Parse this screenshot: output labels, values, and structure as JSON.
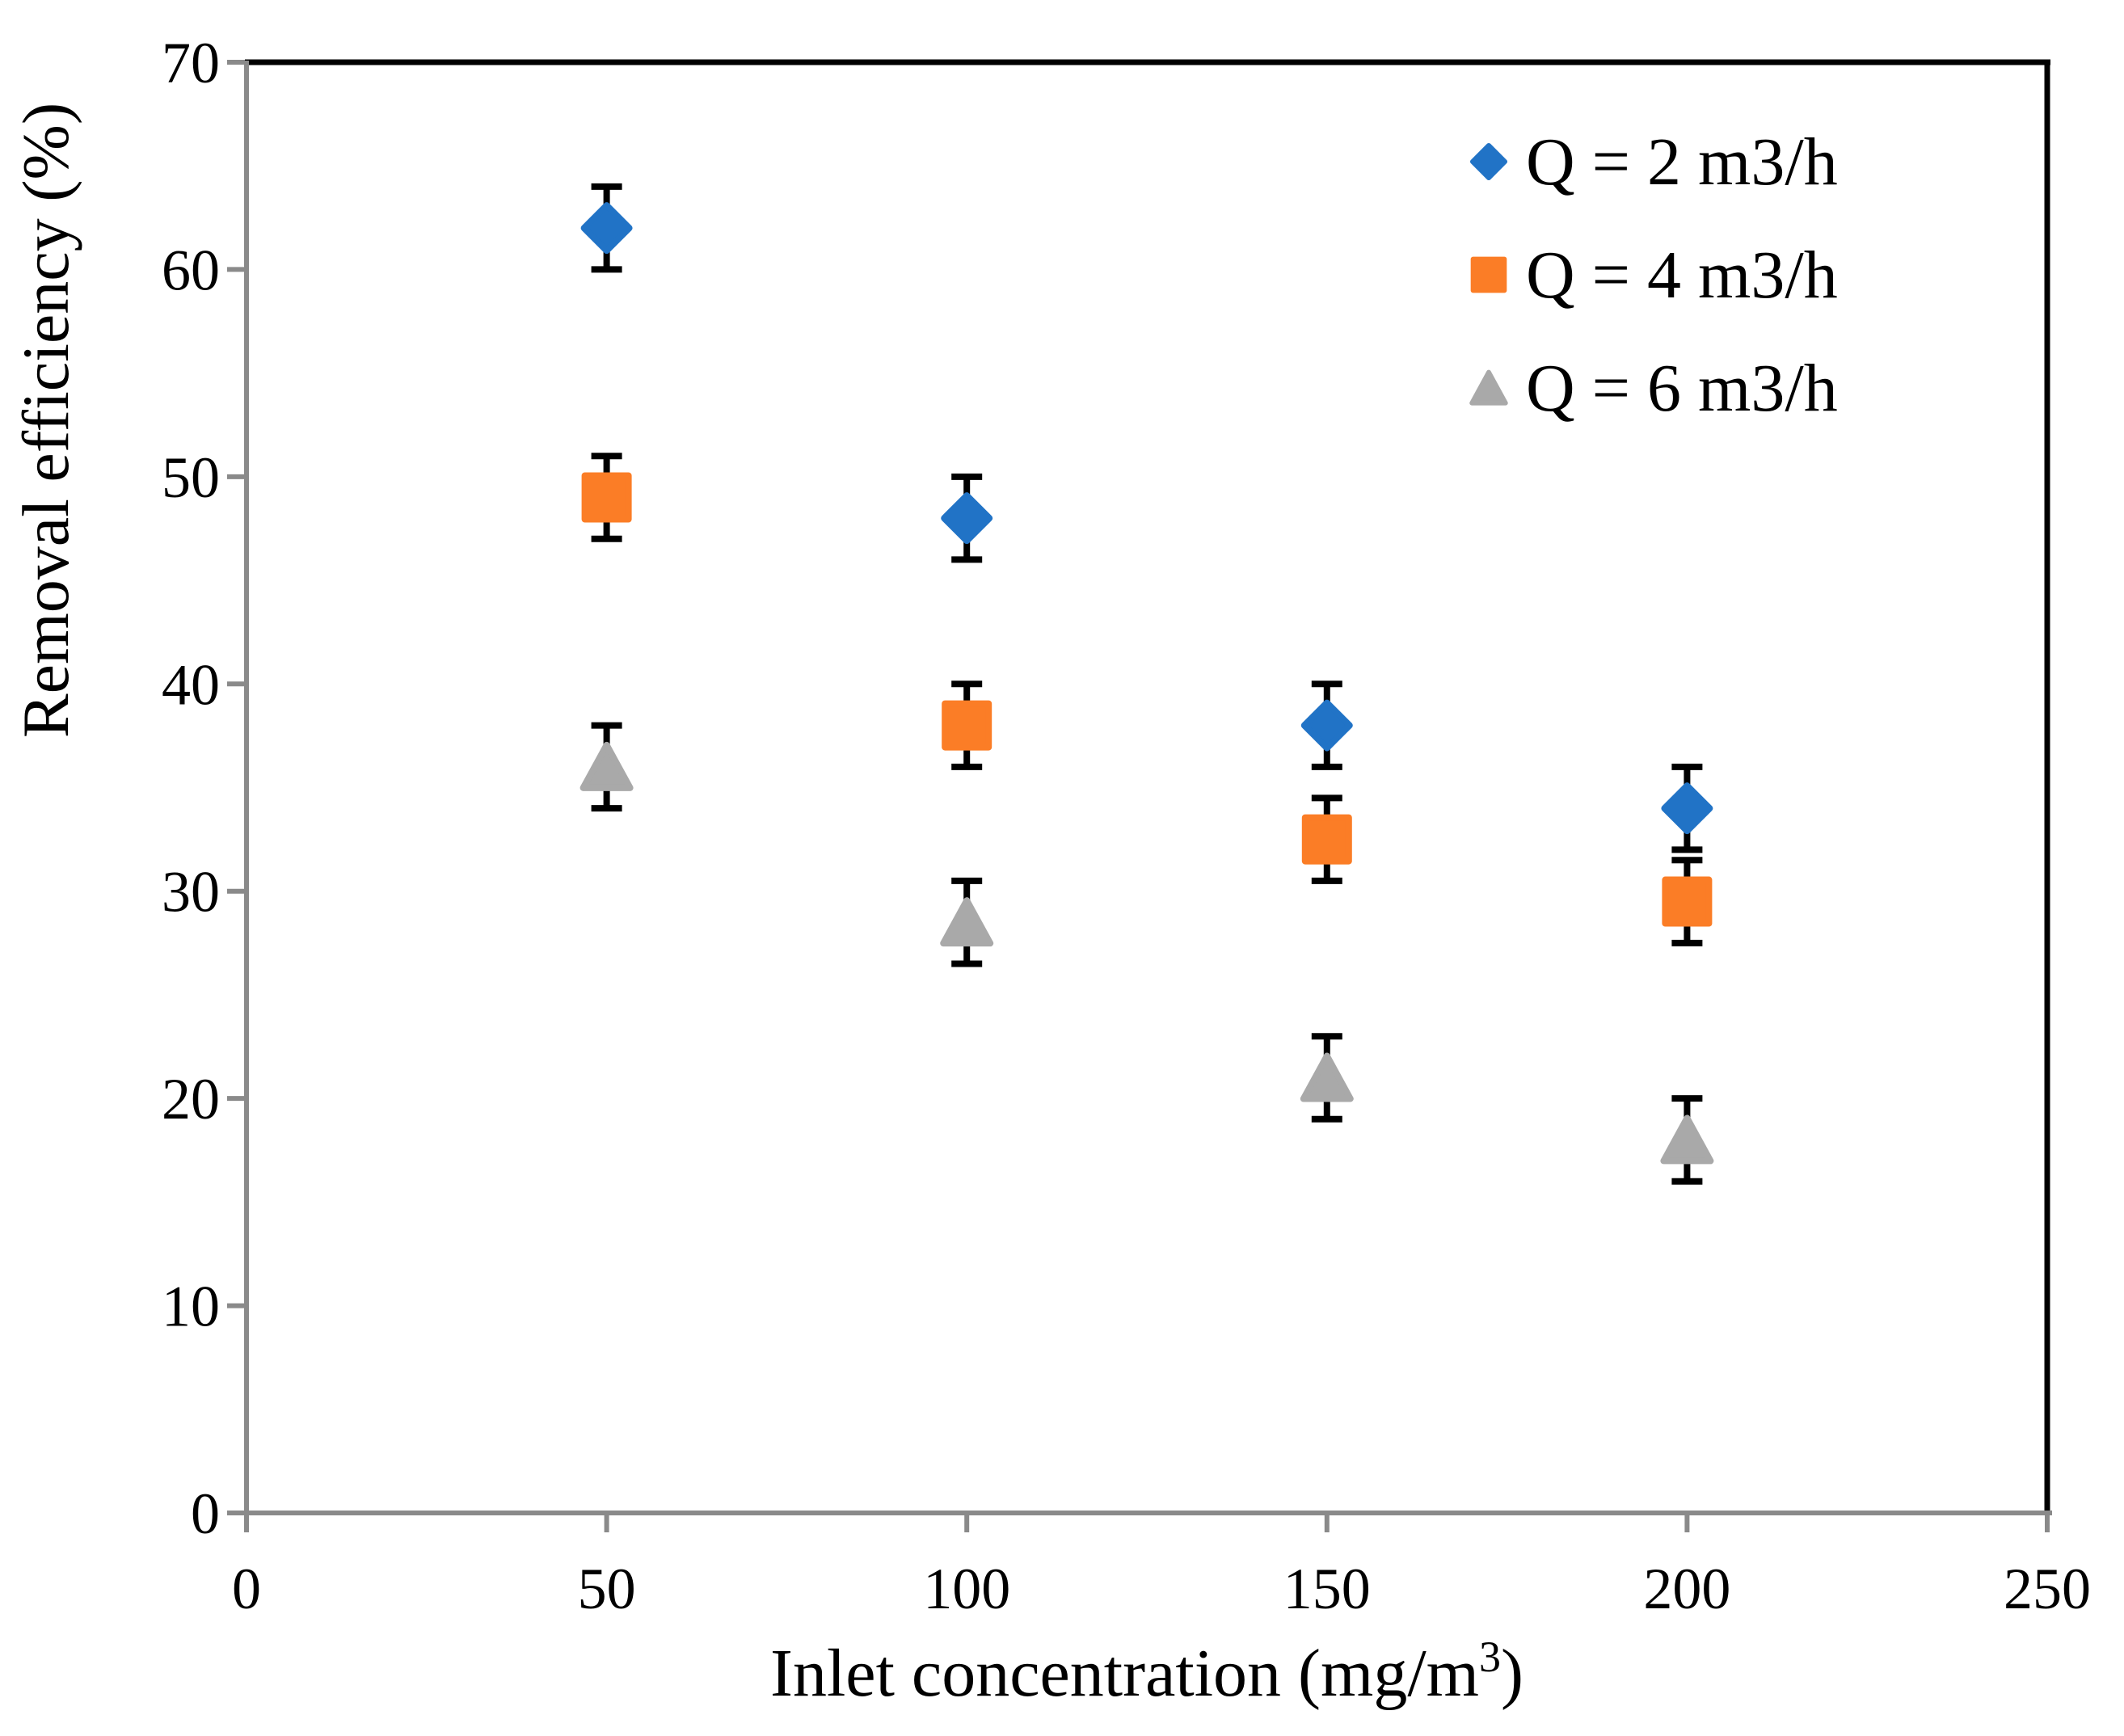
{
  "figure": {
    "kind": "scatter-plot-with-error-bars",
    "background": "#ffffff"
  },
  "chart_data": {
    "type": "scatter",
    "title": "",
    "xlabel": "Inlet concentration (mg/m3)",
    "xlabel_parts": {
      "prefix": "Inlet concentration (mg/m",
      "sup": "3",
      "suffix": ")"
    },
    "ylabel": "Removal efficiency (%)",
    "xlim": [
      0,
      250
    ],
    "ylim": [
      0,
      70
    ],
    "xticks": [
      0,
      50,
      100,
      150,
      200,
      250
    ],
    "yticks": [
      0,
      10,
      20,
      30,
      40,
      50,
      60,
      70
    ],
    "grid": false,
    "legend_position": "upper-right-inside",
    "error_bar": 2,
    "x": [
      50,
      100,
      150,
      200
    ],
    "series": [
      {
        "name": "Q = 2 m3/h",
        "marker": "diamond",
        "color": "#2173C6",
        "values": [
          62,
          48,
          38,
          34
        ]
      },
      {
        "name": "Q = 4 m3/h",
        "marker": "square",
        "color": "#FB7D26",
        "values": [
          49,
          38,
          32.5,
          29.5
        ]
      },
      {
        "name": "Q = 6 m3/h",
        "marker": "triangle",
        "color": "#A9A9A9",
        "values": [
          36,
          28.5,
          21,
          18
        ]
      }
    ],
    "colors": {
      "axis_lines": "#8A8A8A",
      "plot_border": "#000000",
      "error_bars": "#000000",
      "text": "#000000"
    }
  }
}
